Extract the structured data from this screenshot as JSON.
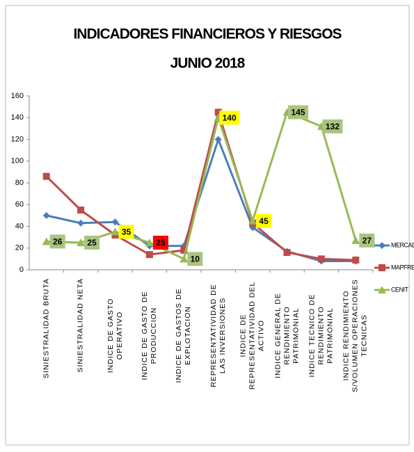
{
  "chart_data": {
    "type": "line",
    "title": "INDICADORES FINANCIEROS Y RIESGOS",
    "subtitle": "JUNIO 2018",
    "categories": [
      "SINIESTRALIDAD BRUTA",
      "SINIESTRALIDAD NETA",
      "INDICE DE GASTO OPERATIVO",
      "INDICE DE GASTO DE PRODUCCION",
      "INDICE DE GASTOS DE EXPLOTACION",
      "REPRESENTATIVIDAD DE LAS INVERSIONES",
      "INDICE DE REPRESENTATIVIDAD DEL ACTIVO",
      "INDICE GENERAL DE RENDIMIENTO PATRIMONIAL",
      "INDICE TECNICO DE RENDIMIENTO PATRIMONIAL",
      "INDICE RENDIMIENTO S/VOLUMEN OPERACIONES TECNICAS"
    ],
    "series": [
      {
        "name": "MERCADO",
        "color": "#4a7ebb",
        "marker": "diamond",
        "values": [
          50,
          43,
          44,
          22,
          22,
          120,
          39,
          17,
          8,
          8
        ]
      },
      {
        "name": "MAPFRE",
        "color": "#be4b48",
        "marker": "square",
        "values": [
          86,
          55,
          32,
          14,
          18,
          145,
          43,
          16,
          10,
          9
        ]
      },
      {
        "name": "CENIT",
        "color": "#98b954",
        "marker": "triangle",
        "values": [
          26,
          25,
          35,
          25,
          10,
          140,
          45,
          145,
          132,
          27
        ],
        "show_labels": true,
        "label_colors": [
          "#a9c47f",
          "#a9c47f",
          "#ffff00",
          "#ff0000",
          "#a9c47f",
          "#ffff00",
          "#ffff00",
          "#a9c47f",
          "#a9c47f",
          "#a9c47f"
        ]
      }
    ],
    "ylim": [
      0,
      160
    ],
    "yticks": [
      0,
      20,
      40,
      60,
      80,
      100,
      120,
      140,
      160
    ],
    "grid": false,
    "legend": "right"
  }
}
